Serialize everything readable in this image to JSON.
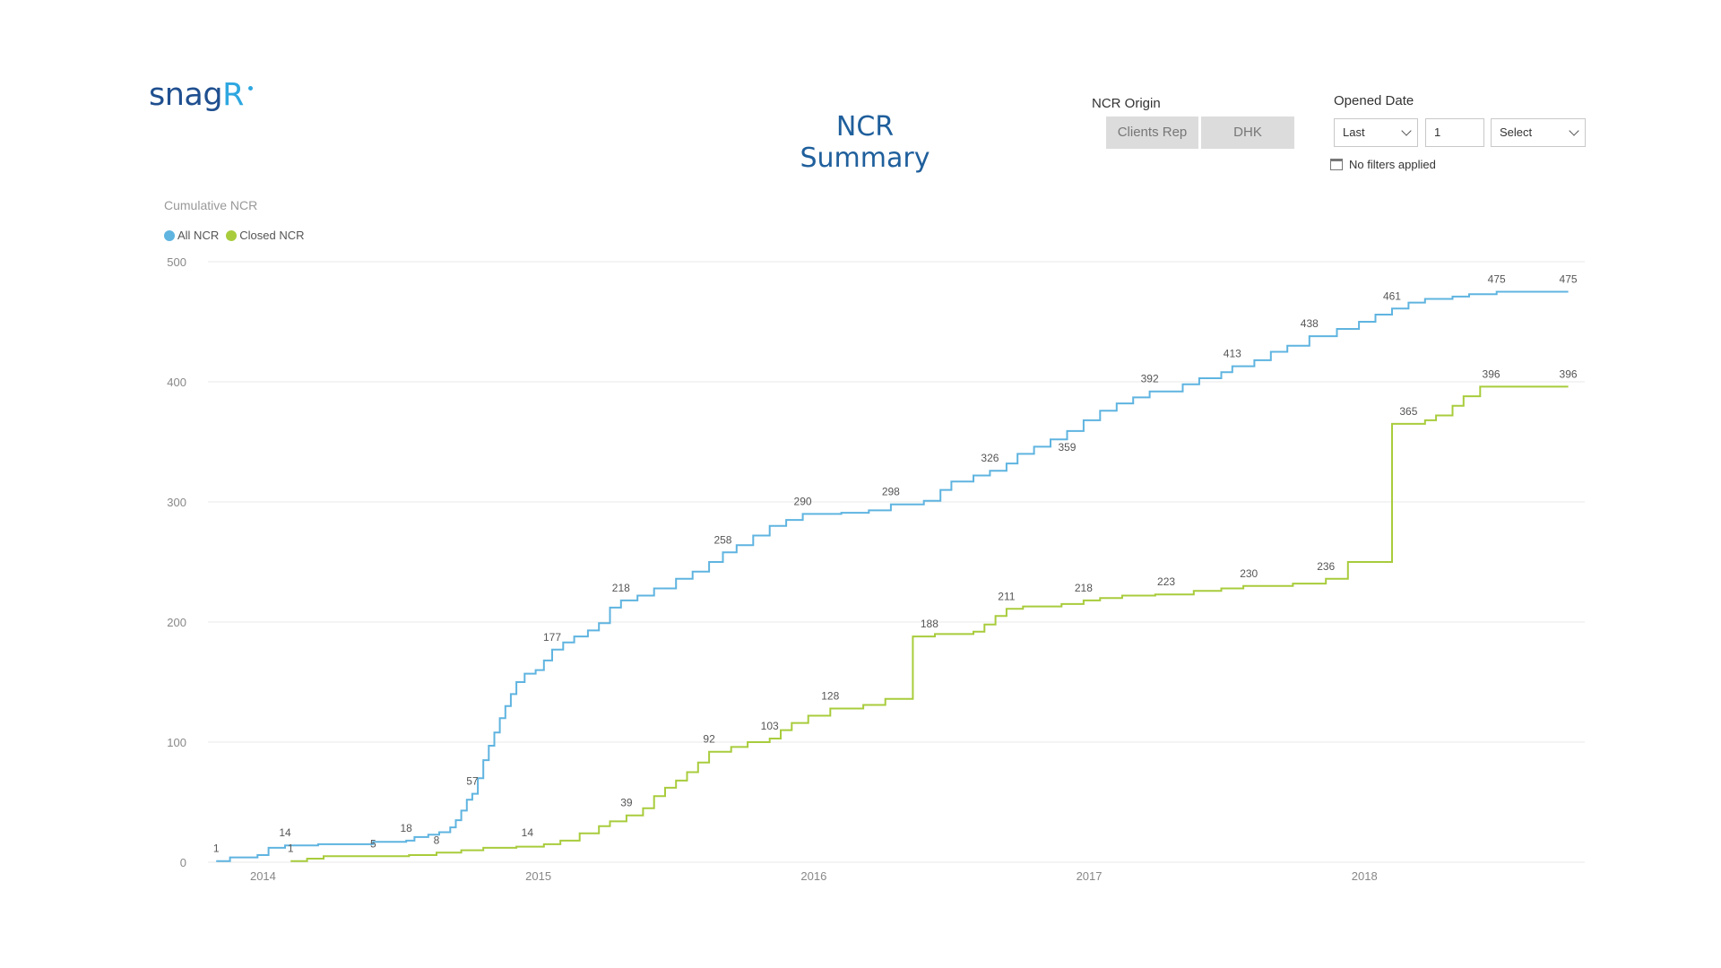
{
  "logo": {
    "text_main": "snag",
    "text_accent": "R"
  },
  "page_title": "NCR Summary",
  "filters": {
    "origin_label": "NCR Origin",
    "origin_options": [
      "Clients Rep",
      "DHK"
    ],
    "date_label": "Opened Date",
    "period_value": "Last",
    "count_value": "1",
    "unit_value": "Select",
    "status_text": "No filters applied"
  },
  "colors": {
    "all_ncr": "#5fb4e0",
    "closed_ncr": "#a8cc3c",
    "grid": "#e8e8e8"
  },
  "chart_data": {
    "type": "line",
    "title": "Cumulative NCR",
    "xlabel": "",
    "ylabel": "",
    "ylim": [
      0,
      500
    ],
    "yticks": [
      0,
      100,
      200,
      300,
      400,
      500
    ],
    "xlim": [
      2013.8,
      2018.8
    ],
    "xticks": [
      2014,
      2015,
      2016,
      2017,
      2018
    ],
    "grid": true,
    "legend_position": "top-left",
    "step": true,
    "series": [
      {
        "name": "All NCR",
        "color_key": "all_ncr",
        "points": [
          [
            2013.83,
            1
          ],
          [
            2013.88,
            4
          ],
          [
            2013.98,
            6
          ],
          [
            2014.02,
            12
          ],
          [
            2014.08,
            14
          ],
          [
            2014.2,
            15
          ],
          [
            2014.4,
            17
          ],
          [
            2014.52,
            18
          ],
          [
            2014.55,
            21
          ],
          [
            2014.6,
            23
          ],
          [
            2014.64,
            25
          ],
          [
            2014.68,
            29
          ],
          [
            2014.7,
            35
          ],
          [
            2014.72,
            43
          ],
          [
            2014.74,
            52
          ],
          [
            2014.76,
            57
          ],
          [
            2014.78,
            70
          ],
          [
            2014.8,
            85
          ],
          [
            2014.82,
            97
          ],
          [
            2014.84,
            108
          ],
          [
            2014.86,
            120
          ],
          [
            2014.88,
            130
          ],
          [
            2014.9,
            140
          ],
          [
            2014.92,
            150
          ],
          [
            2014.95,
            157
          ],
          [
            2014.99,
            160
          ],
          [
            2015.02,
            168
          ],
          [
            2015.05,
            177
          ],
          [
            2015.09,
            183
          ],
          [
            2015.13,
            188
          ],
          [
            2015.18,
            193
          ],
          [
            2015.22,
            199
          ],
          [
            2015.26,
            212
          ],
          [
            2015.3,
            218
          ],
          [
            2015.36,
            222
          ],
          [
            2015.42,
            228
          ],
          [
            2015.5,
            236
          ],
          [
            2015.56,
            242
          ],
          [
            2015.62,
            250
          ],
          [
            2015.67,
            258
          ],
          [
            2015.72,
            264
          ],
          [
            2015.78,
            272
          ],
          [
            2015.84,
            280
          ],
          [
            2015.9,
            285
          ],
          [
            2015.96,
            290
          ],
          [
            2016.1,
            291
          ],
          [
            2016.2,
            293
          ],
          [
            2016.28,
            298
          ],
          [
            2016.4,
            301
          ],
          [
            2016.46,
            310
          ],
          [
            2016.5,
            317
          ],
          [
            2016.58,
            322
          ],
          [
            2016.64,
            326
          ],
          [
            2016.7,
            332
          ],
          [
            2016.74,
            340
          ],
          [
            2016.8,
            346
          ],
          [
            2016.86,
            352
          ],
          [
            2016.92,
            359
          ],
          [
            2016.98,
            368
          ],
          [
            2017.04,
            376
          ],
          [
            2017.1,
            382
          ],
          [
            2017.16,
            387
          ],
          [
            2017.22,
            392
          ],
          [
            2017.34,
            398
          ],
          [
            2017.4,
            403
          ],
          [
            2017.48,
            408
          ],
          [
            2017.52,
            413
          ],
          [
            2017.6,
            418
          ],
          [
            2017.66,
            425
          ],
          [
            2017.72,
            430
          ],
          [
            2017.8,
            438
          ],
          [
            2017.9,
            444
          ],
          [
            2017.98,
            450
          ],
          [
            2018.04,
            456
          ],
          [
            2018.1,
            461
          ],
          [
            2018.16,
            466
          ],
          [
            2018.22,
            469
          ],
          [
            2018.32,
            471
          ],
          [
            2018.38,
            473
          ],
          [
            2018.48,
            475
          ],
          [
            2018.74,
            475
          ]
        ]
      },
      {
        "name": "Closed NCR",
        "color_key": "closed_ncr",
        "points": [
          [
            2014.1,
            1
          ],
          [
            2014.16,
            3
          ],
          [
            2014.22,
            5
          ],
          [
            2014.4,
            5
          ],
          [
            2014.53,
            6
          ],
          [
            2014.63,
            8
          ],
          [
            2014.72,
            10
          ],
          [
            2014.8,
            12
          ],
          [
            2014.92,
            13
          ],
          [
            2015.02,
            15
          ],
          [
            2015.08,
            18
          ],
          [
            2015.15,
            24
          ],
          [
            2015.22,
            30
          ],
          [
            2015.26,
            34
          ],
          [
            2015.32,
            39
          ],
          [
            2015.38,
            45
          ],
          [
            2015.42,
            55
          ],
          [
            2015.46,
            62
          ],
          [
            2015.5,
            68
          ],
          [
            2015.54,
            75
          ],
          [
            2015.58,
            83
          ],
          [
            2015.62,
            92
          ],
          [
            2015.7,
            96
          ],
          [
            2015.76,
            100
          ],
          [
            2015.84,
            103
          ],
          [
            2015.88,
            110
          ],
          [
            2015.92,
            116
          ],
          [
            2015.98,
            122
          ],
          [
            2016.06,
            128
          ],
          [
            2016.18,
            131
          ],
          [
            2016.26,
            136
          ],
          [
            2016.36,
            188
          ],
          [
            2016.44,
            190
          ],
          [
            2016.58,
            192
          ],
          [
            2016.62,
            198
          ],
          [
            2016.66,
            205
          ],
          [
            2016.7,
            211
          ],
          [
            2016.76,
            213
          ],
          [
            2016.9,
            215
          ],
          [
            2016.98,
            218
          ],
          [
            2017.04,
            220
          ],
          [
            2017.12,
            222
          ],
          [
            2017.24,
            223
          ],
          [
            2017.38,
            226
          ],
          [
            2017.48,
            228
          ],
          [
            2017.56,
            230
          ],
          [
            2017.74,
            232
          ],
          [
            2017.86,
            236
          ],
          [
            2017.94,
            250
          ],
          [
            2018.1,
            365
          ],
          [
            2018.22,
            368
          ],
          [
            2018.26,
            372
          ],
          [
            2018.32,
            380
          ],
          [
            2018.36,
            388
          ],
          [
            2018.42,
            396
          ],
          [
            2018.74,
            396
          ]
        ]
      }
    ],
    "data_labels": [
      {
        "series": "All NCR",
        "x": 2013.83,
        "y": 1,
        "text": "1"
      },
      {
        "series": "All NCR",
        "x": 2014.08,
        "y": 14,
        "text": "14"
      },
      {
        "series": "All NCR",
        "x": 2014.52,
        "y": 18,
        "text": "18"
      },
      {
        "series": "All NCR",
        "x": 2014.76,
        "y": 57,
        "text": "57"
      },
      {
        "series": "All NCR",
        "x": 2015.05,
        "y": 177,
        "text": "177"
      },
      {
        "series": "All NCR",
        "x": 2015.3,
        "y": 218,
        "text": "218"
      },
      {
        "series": "All NCR",
        "x": 2015.67,
        "y": 258,
        "text": "258"
      },
      {
        "series": "All NCR",
        "x": 2015.96,
        "y": 290,
        "text": "290"
      },
      {
        "series": "All NCR",
        "x": 2016.28,
        "y": 298,
        "text": "298"
      },
      {
        "series": "All NCR",
        "x": 2016.64,
        "y": 326,
        "text": "326"
      },
      {
        "series": "All NCR",
        "x": 2016.92,
        "y": 359,
        "text": "359",
        "below": true
      },
      {
        "series": "All NCR",
        "x": 2017.22,
        "y": 392,
        "text": "392"
      },
      {
        "series": "All NCR",
        "x": 2017.52,
        "y": 413,
        "text": "413"
      },
      {
        "series": "All NCR",
        "x": 2017.8,
        "y": 438,
        "text": "438"
      },
      {
        "series": "All NCR",
        "x": 2018.1,
        "y": 461,
        "text": "461"
      },
      {
        "series": "All NCR",
        "x": 2018.48,
        "y": 475,
        "text": "475"
      },
      {
        "series": "All NCR",
        "x": 2018.74,
        "y": 475,
        "text": "475"
      },
      {
        "series": "Closed NCR",
        "x": 2014.1,
        "y": 1,
        "text": "1"
      },
      {
        "series": "Closed NCR",
        "x": 2014.4,
        "y": 5,
        "text": "5"
      },
      {
        "series": "Closed NCR",
        "x": 2014.63,
        "y": 8,
        "text": "8"
      },
      {
        "series": "Closed NCR",
        "x": 2014.96,
        "y": 14,
        "text": "14"
      },
      {
        "series": "Closed NCR",
        "x": 2015.32,
        "y": 39,
        "text": "39"
      },
      {
        "series": "Closed NCR",
        "x": 2015.62,
        "y": 92,
        "text": "92"
      },
      {
        "series": "Closed NCR",
        "x": 2015.84,
        "y": 103,
        "text": "103"
      },
      {
        "series": "Closed NCR",
        "x": 2016.06,
        "y": 128,
        "text": "128"
      },
      {
        "series": "Closed NCR",
        "x": 2016.42,
        "y": 188,
        "text": "188"
      },
      {
        "series": "Closed NCR",
        "x": 2016.7,
        "y": 211,
        "text": "211"
      },
      {
        "series": "Closed NCR",
        "x": 2016.98,
        "y": 218,
        "text": "218"
      },
      {
        "series": "Closed NCR",
        "x": 2017.28,
        "y": 223,
        "text": "223"
      },
      {
        "series": "Closed NCR",
        "x": 2017.58,
        "y": 230,
        "text": "230"
      },
      {
        "series": "Closed NCR",
        "x": 2017.86,
        "y": 236,
        "text": "236"
      },
      {
        "series": "Closed NCR",
        "x": 2018.16,
        "y": 365,
        "text": "365"
      },
      {
        "series": "Closed NCR",
        "x": 2018.46,
        "y": 396,
        "text": "396"
      },
      {
        "series": "Closed NCR",
        "x": 2018.74,
        "y": 396,
        "text": "396"
      }
    ]
  }
}
